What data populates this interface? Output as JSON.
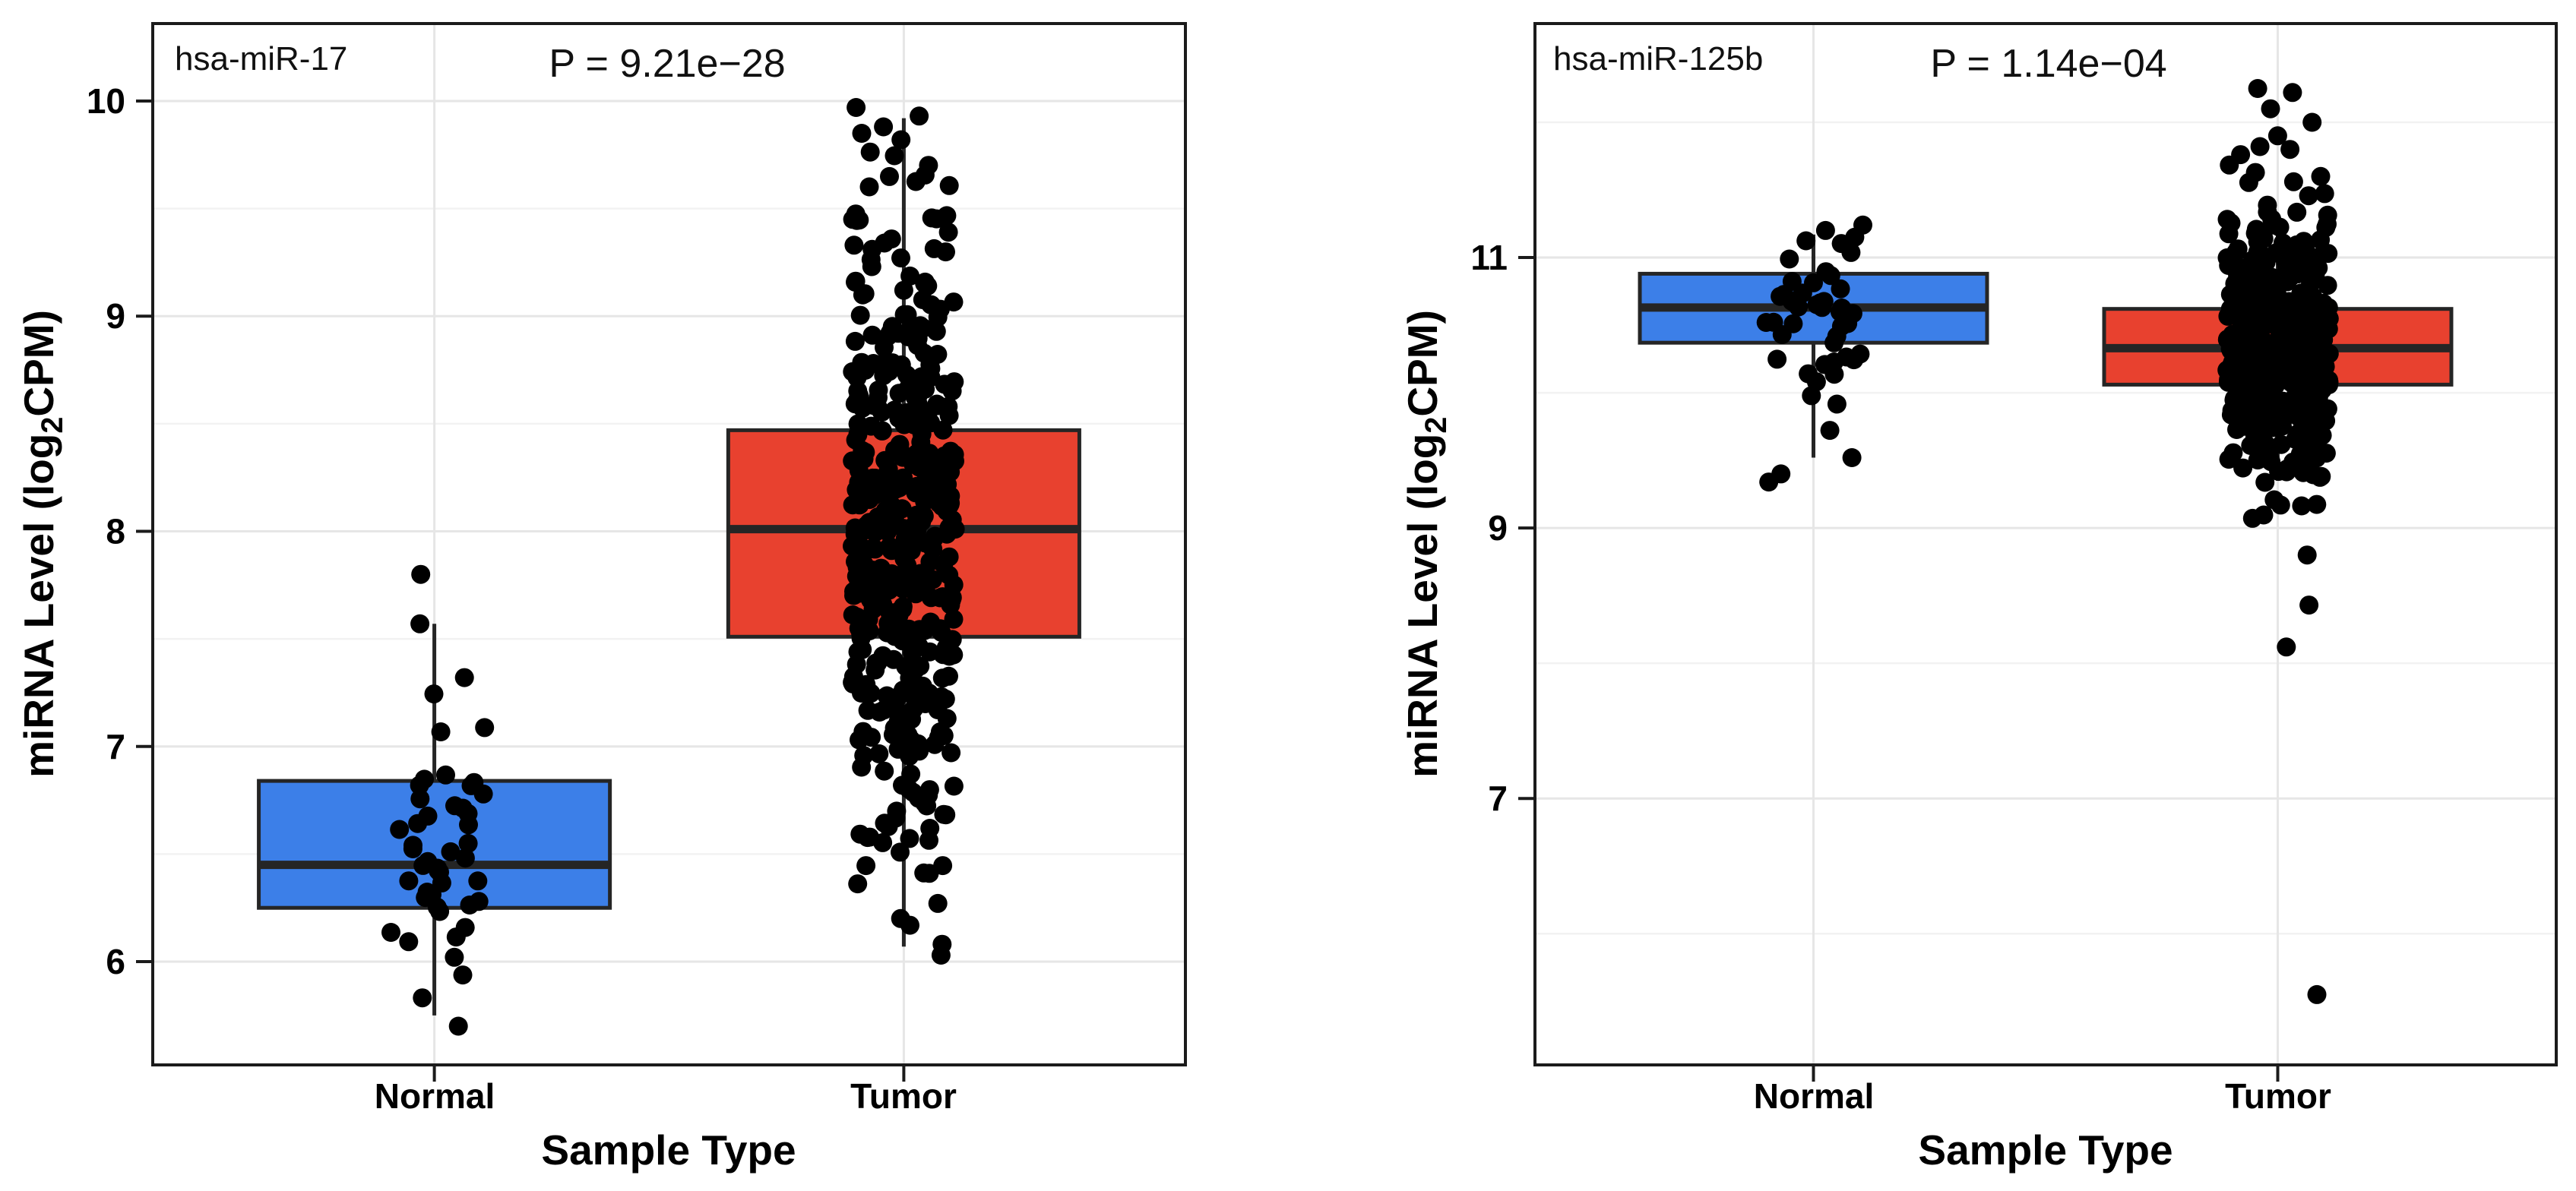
{
  "style": {
    "normal_fill": "#3C7FE8",
    "tumor_fill": "#E8412F",
    "box_outline": "#252525",
    "panel_border": "#1b1b1b",
    "grid_major": "#e6e6e6",
    "grid_minor": "#f2f2f2",
    "point_color": "#000000"
  },
  "chart_data": [
    {
      "type": "boxplot-jitter",
      "title": "hsa-miR-17",
      "p_value": "P = 9.21e−28",
      "xlabel": "Sample Type",
      "ylabel": "miRNA Level (log2CPM)",
      "ylabel_parts": [
        "miRNA Level (log",
        "2",
        "CPM)"
      ],
      "categories": [
        "Normal",
        "Tumor"
      ],
      "yticks": [
        6,
        7,
        8,
        9,
        10
      ],
      "ylim": [
        5.52,
        10.36
      ],
      "grid": true,
      "legend": "none",
      "series": [
        {
          "name": "Normal",
          "color": "#3C7FE8",
          "n": 48,
          "median": 6.45,
          "q1": 6.25,
          "q3": 6.84,
          "whisker_low": 5.75,
          "whisker_high": 7.57,
          "min": 5.7,
          "max": 7.8,
          "low_outliers": [
            5.7
          ],
          "high_points": [
            7.8,
            7.57,
            7.32
          ],
          "spread_sd": 0.4,
          "core_low": 5.78,
          "core_high": 7.3,
          "seed": 7
        },
        {
          "name": "Tumor",
          "color": "#E8412F",
          "n": 430,
          "median": 8.01,
          "q1": 7.51,
          "q3": 8.47,
          "whisker_low": 6.07,
          "whisker_high": 9.92,
          "min": 6.03,
          "max": 9.97,
          "low_outliers": [
            6.03
          ],
          "high_points": [
            9.97,
            9.93,
            9.88,
            9.85,
            9.82
          ],
          "spread_sd": 0.78,
          "core_low": 6.05,
          "core_high": 9.8,
          "seed": 13
        }
      ]
    },
    {
      "type": "boxplot-jitter",
      "title": "hsa-miR-125b",
      "p_value": "P = 1.14e−04",
      "xlabel": "Sample Type",
      "ylabel": "miRNA Level (log2CPM)",
      "ylabel_parts": [
        "miRNA Level (log",
        "2",
        "CPM)"
      ],
      "categories": [
        "Normal",
        "Tumor"
      ],
      "yticks": [
        7,
        9,
        11
      ],
      "ylim": [
        5.03,
        12.73
      ],
      "grid": true,
      "legend": "none",
      "series": [
        {
          "name": "Normal",
          "color": "#3C7FE8",
          "n": 48,
          "median": 10.63,
          "q1": 10.37,
          "q3": 10.88,
          "whisker_low": 9.52,
          "whisker_high": 11.17,
          "min": 9.34,
          "max": 11.24,
          "low_outliers": [
            9.34,
            9.4,
            9.52
          ],
          "high_points": [
            11.24,
            11.2,
            11.15
          ],
          "spread_sd": 0.4,
          "core_low": 9.6,
          "core_high": 11.18,
          "seed": 21
        },
        {
          "name": "Tumor",
          "color": "#E8412F",
          "n": 430,
          "median": 10.33,
          "q1": 10.06,
          "q3": 10.62,
          "whisker_low": 9.35,
          "whisker_high": 11.3,
          "min": 5.55,
          "max": 12.25,
          "low_outliers": [
            8.8,
            8.43,
            8.12,
            5.55
          ],
          "high_points": [
            12.25,
            12.22,
            12.1,
            12.0,
            11.9,
            11.82
          ],
          "spread_sd": 0.5,
          "core_low": 9.05,
          "core_high": 11.95,
          "seed": 29
        }
      ]
    }
  ]
}
